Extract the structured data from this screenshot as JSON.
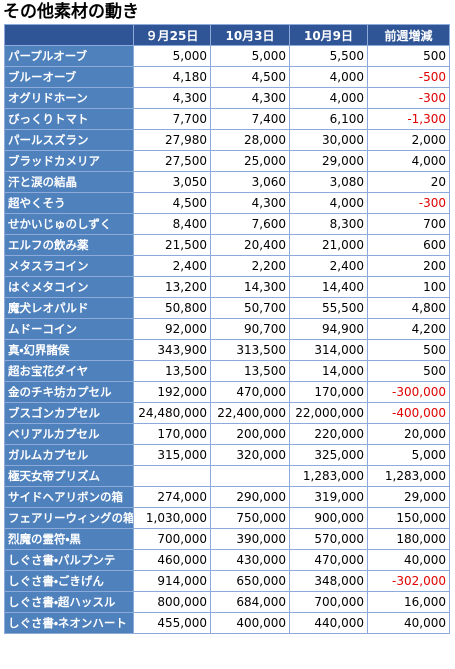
{
  "title": "その他素材の動き",
  "table": {
    "headers": [
      "９月25日",
      "10月3日",
      "10月9日",
      "前週増減"
    ],
    "rows": [
      [
        "パープルオーブ",
        "5,000",
        "5,000",
        "5,500",
        "500"
      ],
      [
        "ブルーオーブ",
        "4,180",
        "4,500",
        "4,000",
        "-500"
      ],
      [
        "オグリドホーン",
        "4,300",
        "4,300",
        "4,000",
        "-300"
      ],
      [
        "びっくりトマト",
        "7,700",
        "7,400",
        "6,100",
        "-1,300"
      ],
      [
        "パールスズラン",
        "27,980",
        "28,000",
        "30,000",
        "2,000"
      ],
      [
        "ブラッドカメリア",
        "27,500",
        "25,000",
        "29,000",
        "4,000"
      ],
      [
        "汗と涙の結晶",
        "3,050",
        "3,060",
        "3,080",
        "20"
      ],
      [
        "超やくそう",
        "4,500",
        "4,300",
        "4,000",
        "-300"
      ],
      [
        "せかいじゅのしずく",
        "8,400",
        "7,600",
        "8,300",
        "700"
      ],
      [
        "エルフの飲み薬",
        "21,500",
        "20,400",
        "21,000",
        "600"
      ],
      [
        "メタスラコイン",
        "2,400",
        "2,200",
        "2,400",
        "200"
      ],
      [
        "はぐメタコイン",
        "13,200",
        "14,300",
        "14,400",
        "100"
      ],
      [
        "魔犬レオパルド",
        "50,800",
        "50,700",
        "55,500",
        "4,800"
      ],
      [
        "ムドーコイン",
        "92,000",
        "90,700",
        "94,900",
        "4,200"
      ],
      [
        "真・幻界諸侯",
        "343,900",
        "313,500",
        "314,000",
        "500"
      ],
      [
        "超お宝花ダイヤ",
        "13,500",
        "13,500",
        "14,000",
        "500"
      ],
      [
        "金のチキ坊カプセル",
        "192,000",
        "470,000",
        "170,000",
        "-300,000"
      ],
      [
        "ブスゴンカプセル",
        "24,480,000",
        "22,400,000",
        "22,000,000",
        "-400,000"
      ],
      [
        "ベリアルカプセル",
        "170,000",
        "200,000",
        "220,000",
        "20,000"
      ],
      [
        "ガルムカプセル",
        "315,000",
        "320,000",
        "325,000",
        "5,000"
      ],
      [
        "極天女帝プリズム",
        null,
        null,
        "1,283,000",
        "1,283,000"
      ],
      [
        "サイドヘアリボンの箱",
        "274,000",
        "290,000",
        "319,000",
        "29,000"
      ],
      [
        "フェアリーウィングの箱",
        "1,030,000",
        "750,000",
        "900,000",
        "150,000"
      ],
      [
        "烈魔の霊符・黒",
        "700,000",
        "390,000",
        "570,000",
        "180,000"
      ],
      [
        "しぐさ書・パルプンテ",
        "460,000",
        "430,000",
        "470,000",
        "40,000"
      ],
      [
        "しぐさ書・ごきげん",
        "914,000",
        "650,000",
        "348,000",
        "-302,000"
      ],
      [
        "しぐさ書・超ハッスル",
        "800,000",
        "684,000",
        "700,000",
        "16,000"
      ],
      [
        "しぐさ書・ネオンハート",
        "455,000",
        "400,000",
        "440,000",
        "40,000"
      ]
    ]
  }
}
